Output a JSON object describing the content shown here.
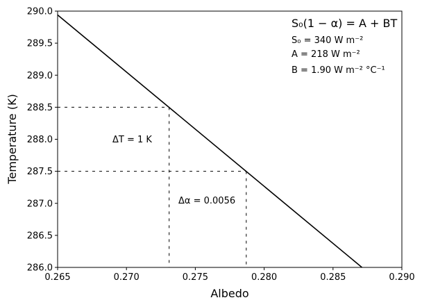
{
  "chart_data": {
    "type": "line",
    "title": "",
    "xlabel": "Albedo",
    "ylabel": "Temperature (K)",
    "xlim": [
      0.265,
      0.29
    ],
    "ylim": [
      286.0,
      290.0
    ],
    "x_ticks": [
      0.265,
      0.27,
      0.275,
      0.28,
      0.285,
      0.29
    ],
    "x_tick_labels": [
      "0.265",
      "0.270",
      "0.275",
      "0.280",
      "0.285",
      "0.290"
    ],
    "y_ticks": [
      286.0,
      286.5,
      287.0,
      287.5,
      288.0,
      288.5,
      289.0,
      289.5,
      290.0
    ],
    "y_tick_labels": [
      "286.0",
      "286.5",
      "287.0",
      "287.5",
      "288.0",
      "288.5",
      "289.0",
      "289.5",
      "290.0"
    ],
    "grid": false,
    "series": [
      {
        "line_color": "#000000",
        "x": [
          0.265,
          0.2871
        ],
        "y": [
          289.94,
          286.0
        ]
      }
    ],
    "guides": [
      {
        "x": 0.2731,
        "y": 288.5
      },
      {
        "x": 0.2787,
        "y": 287.5
      }
    ],
    "annotations": {
      "equation": "S₀(1 − α) = A + BT",
      "s0": "S₀ = 340 W m⁻²",
      "a": "A = 218 W m⁻²",
      "b": "B = 1.90 W m⁻² °C⁻¹",
      "delta_t": "ΔT = 1 K",
      "delta_alpha": "Δα = 0.0056"
    }
  }
}
